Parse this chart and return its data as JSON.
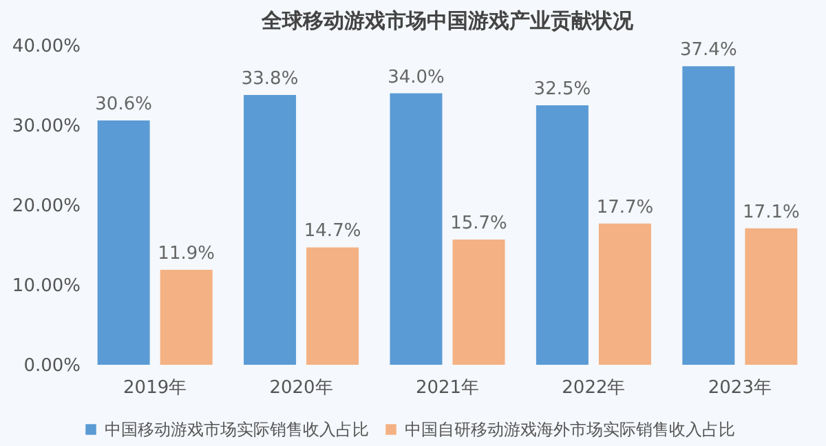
{
  "chart_data": {
    "type": "bar",
    "title": "全球移动游戏市场中国游戏产业贡献状况",
    "categories": [
      "2019年",
      "2020年",
      "2021年",
      "2022年",
      "2023年"
    ],
    "series": [
      {
        "name": "中国移动游戏市场实际销售收入占比",
        "color": "#5b9bd5",
        "values": [
          30.6,
          33.8,
          34.0,
          32.5,
          37.4
        ],
        "value_labels": [
          "30.6%",
          "33.8%",
          "34.0%",
          "32.5%",
          "37.4%"
        ]
      },
      {
        "name": "中国自研移动游戏海外市场实际销售收入占比",
        "color": "#f4b183",
        "values": [
          11.9,
          14.7,
          15.7,
          17.7,
          17.1
        ],
        "value_labels": [
          "11.9%",
          "14.7%",
          "15.7%",
          "17.7%",
          "17.1%"
        ]
      }
    ],
    "ylim": [
      0,
      40
    ],
    "yticks": [
      {
        "value": 0,
        "label": "0.00%"
      },
      {
        "value": 10,
        "label": "10.00%"
      },
      {
        "value": 20,
        "label": "20.00%"
      },
      {
        "value": 30,
        "label": "30.00%"
      },
      {
        "value": 40,
        "label": "40.00%"
      }
    ],
    "grid": false,
    "legend": "bottom"
  }
}
